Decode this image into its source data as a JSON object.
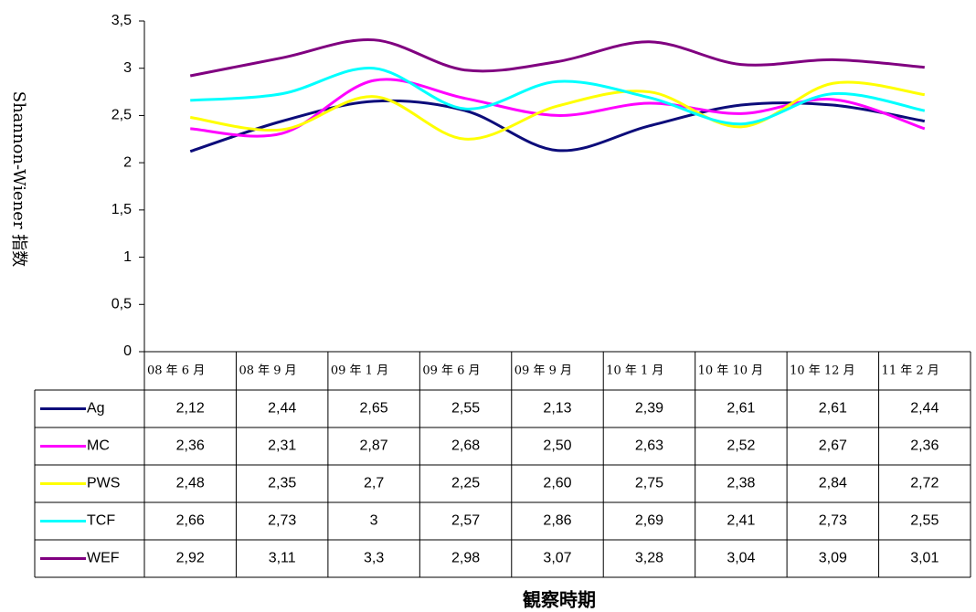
{
  "chart_data": {
    "type": "line",
    "y_label": "Shannon-Wiener 指数",
    "x_label": "観察時期",
    "categories": [
      "08 年 6 月",
      "08 年 9 月",
      "09 年 1 月",
      "09 年 6 月",
      "09 年 9 月",
      "10 年 1 月",
      "10 年 10 月",
      "10 年 12 月",
      "11 年 2 月"
    ],
    "series": [
      {
        "name": "Ag",
        "color": "#0c0c7a",
        "values": [
          2.12,
          2.44,
          2.65,
          2.55,
          2.13,
          2.39,
          2.61,
          2.61,
          2.44
        ],
        "value_labels": [
          "2,12",
          "2,44",
          "2,65",
          "2,55",
          "2,13",
          "2,39",
          "2,61",
          "2,61",
          "2,44"
        ]
      },
      {
        "name": "MC",
        "color": "#ff00ff",
        "values": [
          2.36,
          2.31,
          2.87,
          2.68,
          2.5,
          2.63,
          2.52,
          2.67,
          2.36
        ],
        "value_labels": [
          "2,36",
          "2,31",
          "2,87",
          "2,68",
          "2,50",
          "2,63",
          "2,52",
          "2,67",
          "2,36"
        ]
      },
      {
        "name": "PWS",
        "color": "#ffff00",
        "values": [
          2.48,
          2.35,
          2.7,
          2.25,
          2.6,
          2.75,
          2.38,
          2.84,
          2.72
        ],
        "value_labels": [
          "2,48",
          "2,35",
          "2,7",
          "2,25",
          "2,60",
          "2,75",
          "2,38",
          "2,84",
          "2,72"
        ]
      },
      {
        "name": "TCF",
        "color": "#00ffff",
        "values": [
          2.66,
          2.73,
          3,
          2.57,
          2.86,
          2.69,
          2.41,
          2.73,
          2.55
        ],
        "value_labels": [
          "2,66",
          "2,73",
          "3",
          "2,57",
          "2,86",
          "2,69",
          "2,41",
          "2,73",
          "2,55"
        ]
      },
      {
        "name": "WEF",
        "color": "#800080",
        "values": [
          2.92,
          3.11,
          3.3,
          2.98,
          3.07,
          3.28,
          3.04,
          3.09,
          3.01
        ],
        "value_labels": [
          "2,92",
          "3,11",
          "3,3",
          "2,98",
          "3,07",
          "3,28",
          "3,04",
          "3,09",
          "3,01"
        ]
      }
    ],
    "ylim": [
      0,
      3.5
    ],
    "yticks": [
      0,
      {
        "value": 0.5,
        "label": "0,5"
      },
      1,
      {
        "value": 1.5,
        "label": "1,5"
      },
      2,
      {
        "value": 2.5,
        "label": "2,5"
      },
      3,
      {
        "value": 3.5,
        "label": "3,5"
      }
    ],
    "grid": false
  }
}
